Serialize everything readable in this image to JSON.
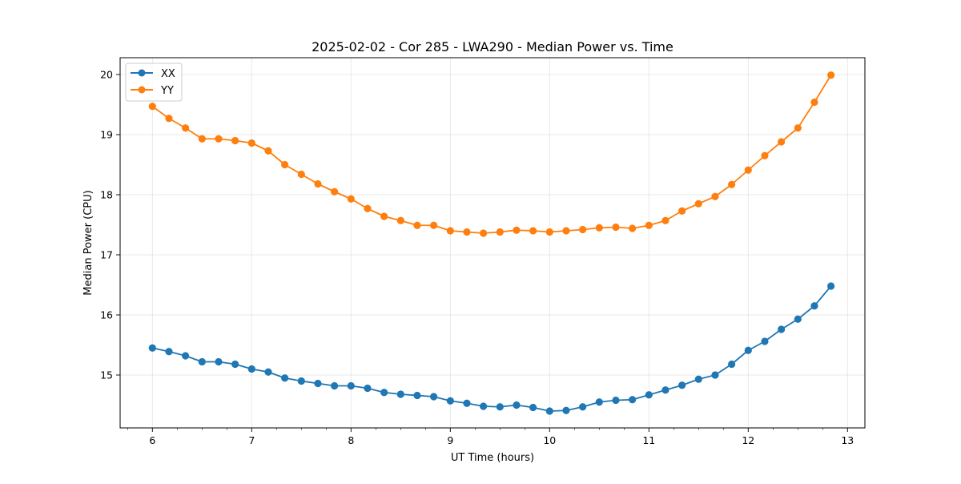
{
  "chart_data": {
    "type": "line",
    "title": "2025-02-02 - Cor 285 - LWA290 - Median Power vs. Time",
    "xlabel": "UT Time (hours)",
    "ylabel": "Median Power (CPU)",
    "xlim": [
      5.675,
      13.175
    ],
    "ylim": [
      14.12,
      20.28
    ],
    "xticks": [
      6,
      7,
      8,
      9,
      10,
      11,
      12,
      13
    ],
    "xtick_labels": [
      "6",
      "7",
      "8",
      "9",
      "10",
      "11",
      "12",
      "13"
    ],
    "yticks": [
      15,
      16,
      17,
      18,
      19,
      20
    ],
    "ytick_labels": [
      "15",
      "16",
      "17",
      "18",
      "19",
      "20"
    ],
    "grid": true,
    "legend_position": "top-left",
    "x": [
      6.0,
      6.1667,
      6.3333,
      6.5,
      6.6667,
      6.8333,
      7.0,
      7.1667,
      7.3333,
      7.5,
      7.6667,
      7.8333,
      8.0,
      8.1667,
      8.3333,
      8.5,
      8.6667,
      8.8333,
      9.0,
      9.1667,
      9.3333,
      9.5,
      9.6667,
      9.8333,
      10.0,
      10.1667,
      10.3333,
      10.5,
      10.6667,
      10.8333,
      11.0,
      11.1667,
      11.3333,
      11.5,
      11.6667,
      11.8333,
      12.0,
      12.1667,
      12.3333,
      12.5,
      12.6667,
      12.8333
    ],
    "series": [
      {
        "name": "XX",
        "color": "#1f77b4",
        "values": [
          15.45,
          15.39,
          15.32,
          15.22,
          15.22,
          15.18,
          15.1,
          15.05,
          14.95,
          14.9,
          14.86,
          14.82,
          14.82,
          14.78,
          14.71,
          14.68,
          14.66,
          14.64,
          14.57,
          14.53,
          14.48,
          14.47,
          14.5,
          14.46,
          14.4,
          14.41,
          14.47,
          14.55,
          14.58,
          14.59,
          14.67,
          14.75,
          14.83,
          14.93,
          15.0,
          15.18,
          15.41,
          15.56,
          15.76,
          15.93,
          16.15,
          16.48
        ]
      },
      {
        "name": "YY",
        "color": "#ff7f0e",
        "values": [
          19.47,
          19.27,
          19.11,
          18.93,
          18.93,
          18.9,
          18.86,
          18.73,
          18.5,
          18.34,
          18.18,
          18.05,
          17.93,
          17.77,
          17.64,
          17.57,
          17.49,
          17.49,
          17.4,
          17.38,
          17.36,
          17.38,
          17.41,
          17.4,
          17.38,
          17.4,
          17.42,
          17.45,
          17.46,
          17.44,
          17.49,
          17.57,
          17.73,
          17.85,
          17.97,
          18.17,
          18.41,
          18.65,
          18.88,
          19.11,
          19.54,
          19.99
        ]
      }
    ]
  }
}
